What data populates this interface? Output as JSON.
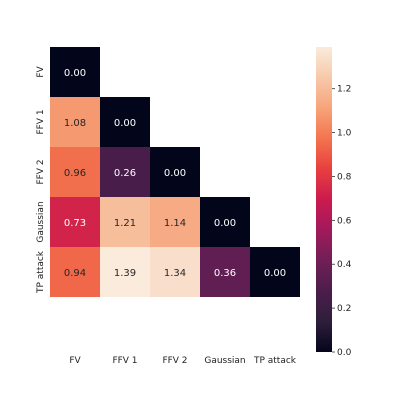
{
  "chart_data": {
    "type": "heatmap",
    "mask": "upper-triangle",
    "x_categories": [
      "FV",
      "FFV 1",
      "FFV 2",
      "Gaussian",
      "TP attack"
    ],
    "y_categories": [
      "FV",
      "FFV 1",
      "FFV 2",
      "Gaussian",
      "TP attack"
    ],
    "cells": [
      {
        "row": 0,
        "col": 0,
        "value": 0.0,
        "label": "0.00"
      },
      {
        "row": 1,
        "col": 0,
        "value": 1.08,
        "label": "1.08"
      },
      {
        "row": 1,
        "col": 1,
        "value": 0.0,
        "label": "0.00"
      },
      {
        "row": 2,
        "col": 0,
        "value": 0.96,
        "label": "0.96"
      },
      {
        "row": 2,
        "col": 1,
        "value": 0.26,
        "label": "0.26"
      },
      {
        "row": 2,
        "col": 2,
        "value": 0.0,
        "label": "0.00"
      },
      {
        "row": 3,
        "col": 0,
        "value": 0.73,
        "label": "0.73"
      },
      {
        "row": 3,
        "col": 1,
        "value": 1.21,
        "label": "1.21"
      },
      {
        "row": 3,
        "col": 2,
        "value": 1.14,
        "label": "1.14"
      },
      {
        "row": 3,
        "col": 3,
        "value": 0.0,
        "label": "0.00"
      },
      {
        "row": 4,
        "col": 0,
        "value": 0.94,
        "label": "0.94"
      },
      {
        "row": 4,
        "col": 1,
        "value": 1.39,
        "label": "1.39"
      },
      {
        "row": 4,
        "col": 2,
        "value": 1.34,
        "label": "1.34"
      },
      {
        "row": 4,
        "col": 3,
        "value": 0.36,
        "label": "0.36"
      },
      {
        "row": 4,
        "col": 4,
        "value": 0.0,
        "label": "0.00"
      }
    ],
    "vmin": 0.0,
    "vmax": 1.39,
    "colorbar_ticks": [
      "0.0",
      "0.2",
      "0.4",
      "0.6",
      "0.8",
      "1.0",
      "1.2"
    ],
    "colormap": "rocket",
    "colormap_stops": [
      "#03051a",
      "#2e1e3b",
      "#4c1d4b",
      "#701f57",
      "#a11a5b",
      "#cb1b4f",
      "#e83f3f",
      "#f3744e",
      "#f6a47b",
      "#f7c9aa",
      "#faebdd"
    ]
  }
}
